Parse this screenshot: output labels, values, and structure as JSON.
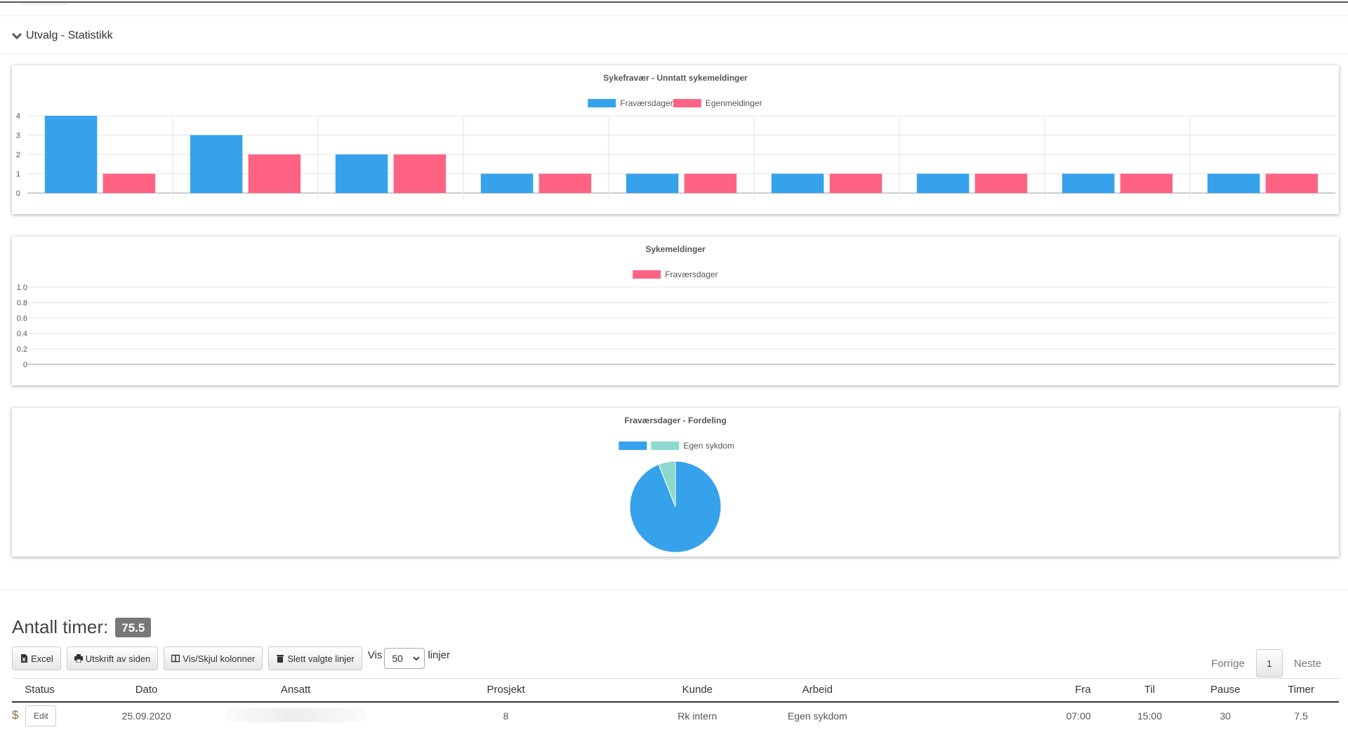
{
  "accordion": {
    "label": "Utvalg - Statistikk"
  },
  "colors": {
    "blue": "#36A2EB",
    "pink": "#FF6384",
    "teal": "#8DD9CF"
  },
  "charts": [
    {
      "title": "Sykefravær - Unntatt sykemeldinger"
    },
    {
      "title": "Sykemeldinger"
    },
    {
      "title": "Fraværsdager - Fordeling"
    }
  ],
  "chart_data": [
    {
      "type": "bar",
      "title": "Sykefravær - Unntatt sykemeldinger",
      "categories": [
        "",
        "",
        "",
        "",
        "",
        "",
        "",
        "",
        ""
      ],
      "series": [
        {
          "name": "Fraværsdager",
          "color": "#36A2EB",
          "values": [
            4,
            3,
            2,
            1,
            1,
            1,
            1,
            1,
            1
          ]
        },
        {
          "name": "Egenmeldinger",
          "color": "#FF6384",
          "values": [
            1,
            2,
            2,
            1,
            1,
            1,
            1,
            1,
            1
          ]
        }
      ],
      "ylim": [
        0,
        4
      ],
      "yticks": [
        "0",
        "1",
        "2",
        "3",
        "4"
      ],
      "grid": true,
      "legend": "top"
    },
    {
      "type": "bar",
      "title": "Sykemeldinger",
      "categories": [],
      "series": [
        {
          "name": "Fraværsdager",
          "color": "#FF6384",
          "values": []
        }
      ],
      "ylim": [
        0,
        1
      ],
      "yticks": [
        "0",
        "0.2",
        "0.4",
        "0.6",
        "0.8",
        "1.0"
      ],
      "grid": true,
      "legend": "top"
    },
    {
      "type": "pie",
      "title": "Fraværsdager - Fordeling",
      "labels": [
        "",
        "Egen sykdom"
      ],
      "values": [
        94,
        6
      ],
      "colors": [
        "#36A2EB",
        "#8DD9CF"
      ],
      "legend": "top"
    }
  ],
  "summary": {
    "label": "Antall timer:",
    "value": "75.5"
  },
  "toolbar": {
    "excel": "Excel",
    "print": "Utskrift av siden",
    "columns": "Vis/Skjul kolonner",
    "delete": "Slett valgte linjer",
    "show_label": "Vis",
    "page_size": "50",
    "rows_label": "linjer"
  },
  "pagination": {
    "prev": "Forrige",
    "current": "1",
    "next": "Neste"
  },
  "table": {
    "headers": [
      "Status",
      "Dato",
      "Ansatt",
      "Prosjekt",
      "Kunde",
      "Arbeid",
      "Fra",
      "Til",
      "Pause",
      "Timer"
    ],
    "rows": [
      {
        "status": "$",
        "edit": "Edit",
        "dato": "25.09.2020",
        "ansatt": "",
        "prosjekt": "8",
        "kunde": "Rk intern",
        "arbeid": "Egen sykdom",
        "fra": "07:00",
        "til": "15:00",
        "pause": "30",
        "timer": "7.5"
      }
    ]
  }
}
